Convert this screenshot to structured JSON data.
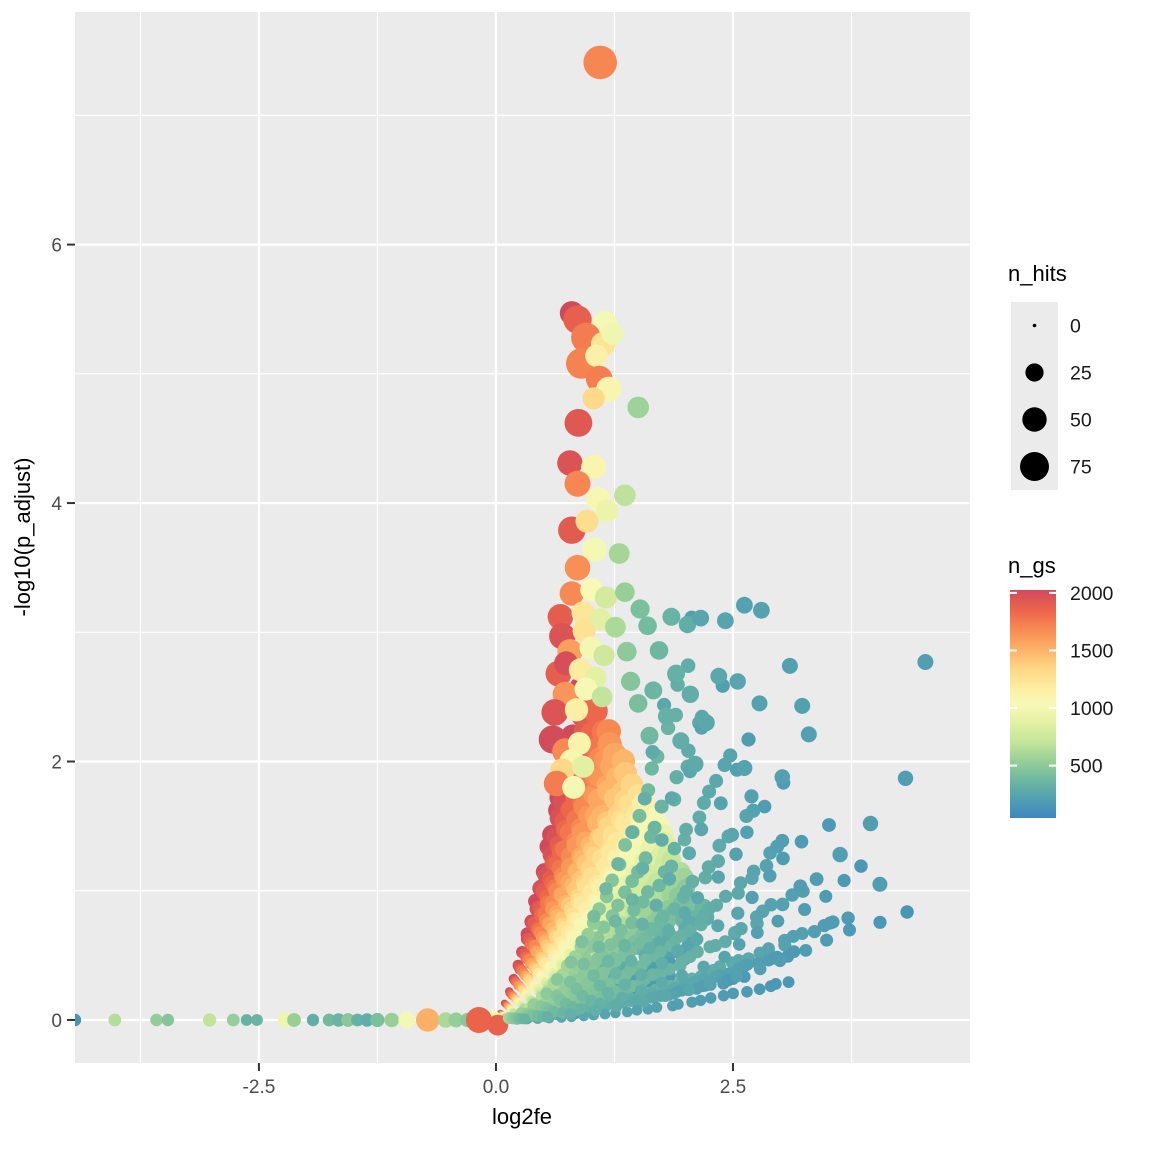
{
  "chart_data": {
    "type": "scatter",
    "title": "",
    "xlabel": "log2fe",
    "ylabel": "-log10(p_adjust)",
    "x_axis": {
      "min": -4.44,
      "max": 5.0,
      "major_ticks": [
        -2.5,
        0.0,
        2.5
      ],
      "tick_labels": [
        "-2.5",
        "0.0",
        "2.5"
      ],
      "minor_ticks": [
        -3.75,
        -1.25,
        1.25,
        3.75
      ]
    },
    "y_axis": {
      "min": -0.333,
      "max": 7.8,
      "major_ticks": [
        0,
        2,
        4,
        6
      ],
      "tick_labels": [
        "0",
        "2",
        "4",
        "6"
      ],
      "minor_ticks": [
        1,
        3,
        5,
        7
      ]
    },
    "grid": true,
    "panel_bg": "#ebebeb",
    "grid_color": "#ffffff",
    "tick_mark_color": "#333333",
    "size_legend": {
      "title": "n_hits",
      "values": [
        0,
        25,
        50,
        75
      ],
      "r_min": 1.8,
      "r_at_ref": 14.5,
      "ref": 75,
      "key_fill": "#000000",
      "key_bg": "#ebebeb"
    },
    "color_legend": {
      "title": "n_gs",
      "ticks": [
        2000,
        1500,
        1000,
        500
      ],
      "domain": [
        45,
        2025
      ],
      "palette": [
        [
          0,
          "#3e88be"
        ],
        [
          0.09,
          "#53a1b0"
        ],
        [
          0.17,
          "#6fb9a0"
        ],
        [
          0.25,
          "#97cf97"
        ],
        [
          0.33,
          "#c3e59b"
        ],
        [
          0.42,
          "#e4f1a3"
        ],
        [
          0.5,
          "#f7f9b6"
        ],
        [
          0.58,
          "#fdeb9e"
        ],
        [
          0.66,
          "#fdd584"
        ],
        [
          0.74,
          "#fcb166"
        ],
        [
          0.83,
          "#f78a53"
        ],
        [
          0.91,
          "#ec654a"
        ],
        [
          1,
          "#d14a5c"
        ]
      ]
    },
    "points_format": [
      "log2fe",
      "neg_log10_p_adjust",
      "n_hits",
      "n_gs"
    ],
    "highlight_points": [
      [
        1.1,
        7.41,
        105,
        1700
      ],
      [
        0.8,
        5.47,
        48,
        2050
      ],
      [
        0.86,
        5.42,
        72,
        1880
      ],
      [
        1.15,
        5.39,
        52,
        1020
      ],
      [
        0.95,
        5.28,
        80,
        1750
      ],
      [
        1.13,
        5.23,
        50,
        1250
      ],
      [
        1.23,
        5.31,
        40,
        980
      ],
      [
        0.9,
        5.08,
        85,
        1720
      ],
      [
        1.06,
        5.14,
        42,
        1120
      ],
      [
        1.09,
        4.96,
        62,
        1740
      ],
      [
        1.19,
        4.88,
        55,
        1080
      ],
      [
        1.03,
        4.81,
        40,
        1320
      ],
      [
        1.5,
        4.74,
        38,
        560
      ],
      [
        0.87,
        4.62,
        68,
        1930
      ],
      [
        0.78,
        4.31,
        55,
        1960
      ],
      [
        1.03,
        4.28,
        52,
        1090
      ],
      [
        0.86,
        4.15,
        58,
        1700
      ],
      [
        1.08,
        4.03,
        50,
        1060
      ],
      [
        1.36,
        4.06,
        38,
        680
      ],
      [
        1.17,
        3.94,
        42,
        940
      ],
      [
        0.8,
        3.79,
        66,
        1910
      ],
      [
        0.96,
        3.86,
        44,
        1290
      ],
      [
        1.04,
        3.64,
        50,
        1010
      ],
      [
        1.3,
        3.61,
        34,
        590
      ],
      [
        0.86,
        3.5,
        56,
        1660
      ],
      [
        0.8,
        3.3,
        50,
        1690
      ],
      [
        1.01,
        3.33,
        44,
        1040
      ],
      [
        1.16,
        3.27,
        40,
        790
      ],
      [
        1.36,
        3.31,
        30,
        540
      ],
      [
        0.68,
        3.12,
        56,
        1900
      ],
      [
        0.92,
        3.15,
        46,
        1230
      ],
      [
        1.1,
        3.1,
        40,
        860
      ],
      [
        0.7,
        2.97,
        60,
        1960
      ],
      [
        0.93,
        3.01,
        44,
        1260
      ],
      [
        1.26,
        3.04,
        34,
        610
      ],
      [
        0.78,
        2.85,
        54,
        1590
      ],
      [
        1.0,
        2.88,
        42,
        990
      ],
      [
        1.14,
        2.82,
        36,
        760
      ],
      [
        0.66,
        2.68,
        58,
        1890
      ],
      [
        0.74,
        2.76,
        48,
        2000
      ],
      [
        0.89,
        2.71,
        44,
        1180
      ],
      [
        1.05,
        2.65,
        38,
        880
      ],
      [
        0.73,
        2.52,
        54,
        1640
      ],
      [
        0.95,
        2.56,
        44,
        1030
      ],
      [
        1.12,
        2.5,
        34,
        700
      ],
      [
        0.62,
        2.38,
        62,
        1950
      ],
      [
        0.85,
        2.4,
        46,
        1150
      ],
      [
        0.6,
        2.17,
        70,
        2010
      ],
      [
        0.73,
        2.08,
        58,
        1690
      ],
      [
        0.88,
        2.14,
        44,
        1100
      ],
      [
        0.8,
        2.0,
        52,
        1080
      ],
      [
        0.7,
        1.93,
        50,
        1330
      ],
      [
        0.92,
        1.96,
        40,
        860
      ],
      [
        0.64,
        1.83,
        56,
        1750
      ],
      [
        0.82,
        1.8,
        44,
        1010
      ]
    ],
    "baseline_points": [
      [
        -4.44,
        0,
        9,
        140
      ],
      [
        -4.02,
        0,
        10,
        640
      ],
      [
        -3.58,
        0,
        9,
        520
      ],
      [
        -3.46,
        0,
        9,
        470
      ],
      [
        -3.02,
        0,
        11,
        690
      ],
      [
        -2.77,
        0,
        10,
        530
      ],
      [
        -2.63,
        0,
        8,
        330
      ],
      [
        -2.52,
        0,
        8,
        350
      ],
      [
        -2.22,
        0,
        16,
        960
      ],
      [
        -2.13,
        0,
        12,
        540
      ],
      [
        -1.93,
        0,
        9,
        310
      ],
      [
        -1.76,
        0,
        10,
        390
      ],
      [
        -1.66,
        0,
        11,
        350
      ],
      [
        -1.56,
        0,
        12,
        490
      ],
      [
        -1.46,
        0,
        10,
        330
      ],
      [
        -1.36,
        0,
        11,
        300
      ],
      [
        -1.25,
        0,
        13,
        430
      ],
      [
        -1.1,
        0,
        14,
        540
      ],
      [
        -0.94,
        0,
        20,
        1010
      ],
      [
        -0.72,
        0,
        46,
        1520
      ],
      [
        -0.53,
        0,
        17,
        610
      ],
      [
        -0.42,
        0,
        15,
        530
      ],
      [
        -0.3,
        0,
        13,
        480
      ],
      [
        -0.04,
        0,
        28,
        1060
      ],
      [
        -0.18,
        0,
        58,
        1860
      ],
      [
        0.02,
        -0.04,
        34,
        1870
      ]
    ],
    "scatter_points": [
      [
        1.85,
        3.12,
        24,
        340
      ],
      [
        2.02,
        3.06,
        22,
        300
      ],
      [
        2.16,
        3.11,
        20,
        250
      ],
      [
        2.42,
        3.09,
        20,
        240
      ],
      [
        2.62,
        3.21,
        20,
        230
      ],
      [
        2.8,
        3.17,
        20,
        230
      ],
      [
        3.1,
        2.74,
        18,
        220
      ],
      [
        4.53,
        2.77,
        18,
        210
      ],
      [
        3.23,
        2.43,
        18,
        220
      ],
      [
        3.3,
        2.21,
        18,
        215
      ],
      [
        2.78,
        2.45,
        18,
        230
      ],
      [
        2.55,
        2.62,
        19,
        250
      ],
      [
        2.35,
        2.66,
        20,
        260
      ],
      [
        2.62,
        1.95,
        18,
        235
      ],
      [
        3.02,
        1.88,
        17,
        215
      ],
      [
        4.32,
        1.87,
        16,
        200
      ],
      [
        2.22,
        2.3,
        20,
        270
      ],
      [
        2.05,
        2.52,
        22,
        300
      ],
      [
        1.9,
        2.68,
        24,
        330
      ],
      [
        1.72,
        2.86,
        26,
        370
      ],
      [
        1.6,
        3.05,
        26,
        400
      ],
      [
        1.52,
        3.18,
        28,
        430
      ],
      [
        1.66,
        2.55,
        24,
        360
      ],
      [
        1.8,
        2.35,
        22,
        330
      ],
      [
        1.95,
        2.16,
        21,
        300
      ],
      [
        2.1,
        1.98,
        20,
        280
      ],
      [
        3.95,
        1.52,
        16,
        205
      ],
      [
        4.05,
        1.05,
        15,
        200
      ],
      [
        3.63,
        1.28,
        16,
        210
      ],
      [
        1.62,
        2.2,
        24,
        380
      ],
      [
        1.5,
        2.45,
        26,
        420
      ],
      [
        1.42,
        2.62,
        28,
        470
      ],
      [
        1.38,
        2.85,
        30,
        500
      ]
    ],
    "fan": {
      "n_per_ray": 20,
      "bend": 1.3,
      "s_start": 0.05,
      "ray_format": [
        "n_gs",
        "x_end",
        "y_end",
        "n_hits_tip"
      ],
      "rays": [
        [
          2050,
          0.92,
          2.55,
          58
        ],
        [
          1980,
          0.97,
          2.48,
          57
        ],
        [
          1909,
          1.02,
          2.41,
          55
        ],
        [
          1839,
          1.07,
          2.34,
          54
        ],
        [
          1768,
          1.12,
          2.27,
          52
        ],
        [
          1698,
          1.18,
          2.2,
          51
        ],
        [
          1628,
          1.23,
          2.13,
          49
        ],
        [
          1557,
          1.28,
          2.06,
          48
        ],
        [
          1487,
          1.33,
          1.99,
          46
        ],
        [
          1416,
          1.38,
          1.92,
          45
        ],
        [
          1346,
          1.43,
          1.85,
          44
        ],
        [
          1276,
          1.48,
          1.78,
          42
        ],
        [
          1205,
          1.53,
          1.71,
          41
        ],
        [
          1135,
          1.59,
          1.64,
          39
        ],
        [
          1064,
          1.64,
          1.57,
          38
        ],
        [
          994,
          1.69,
          1.5,
          36
        ],
        [
          924,
          1.74,
          1.43,
          35
        ],
        [
          853,
          1.79,
          1.36,
          34
        ],
        [
          783,
          1.84,
          1.29,
          32
        ],
        [
          712,
          1.89,
          1.22,
          31
        ],
        [
          642,
          1.94,
          1.15,
          29
        ],
        [
          572,
          2.0,
          1.08,
          28
        ],
        [
          501,
          2.05,
          1.01,
          26
        ],
        [
          431,
          2.1,
          0.94,
          25
        ],
        [
          360,
          2.15,
          0.87,
          24
        ],
        [
          290,
          2.2,
          0.8,
          22
        ],
        [
          240,
          2.1,
          0.62,
          18
        ],
        [
          205,
          1.95,
          0.47,
          15
        ],
        [
          180,
          1.78,
          0.34,
          13
        ],
        [
          160,
          1.58,
          0.24,
          11
        ],
        [
          140,
          1.35,
          0.16,
          9
        ],
        [
          120,
          1.1,
          0.09,
          7
        ],
        [
          105,
          0.85,
          0.05,
          6
        ]
      ]
    },
    "arcs": {
      "format": [
        "ngs_start",
        "ngs_end",
        "n_hits",
        "n_points",
        "x_end",
        "y_end",
        "bend"
      ],
      "list": [
        [
          700,
          260,
          14,
          30,
          2.2,
          2.4,
          1.85
        ],
        [
          750,
          300,
          14,
          28,
          2.0,
          2.75,
          1.95
        ],
        [
          650,
          240,
          13,
          34,
          2.45,
          2.05,
          1.8
        ],
        [
          620,
          225,
          13,
          36,
          2.75,
          1.7,
          1.75
        ],
        [
          580,
          210,
          12,
          38,
          3.05,
          1.38,
          1.7
        ],
        [
          540,
          195,
          12,
          40,
          3.35,
          1.08,
          1.65
        ],
        [
          500,
          180,
          11,
          42,
          3.65,
          0.8,
          1.6
        ],
        [
          460,
          170,
          10,
          44,
          3.1,
          0.52,
          1.5
        ],
        [
          430,
          170,
          9,
          40,
          2.6,
          0.33,
          1.4
        ],
        [
          300,
          150,
          8,
          26,
          3.1,
          0.3,
          1.9
        ],
        [
          600,
          220,
          14,
          16,
          2.05,
          3.1,
          2.0
        ],
        [
          560,
          210,
          13,
          15,
          2.35,
          2.62,
          2.0
        ],
        [
          520,
          195,
          13,
          16,
          2.68,
          2.22,
          1.95
        ],
        [
          480,
          180,
          12,
          17,
          3.05,
          1.86,
          1.9
        ],
        [
          440,
          165,
          12,
          18,
          3.45,
          1.52,
          1.85
        ],
        [
          400,
          150,
          11,
          18,
          3.85,
          1.18,
          1.8
        ],
        [
          360,
          140,
          11,
          17,
          4.28,
          0.85,
          1.75
        ]
      ]
    }
  }
}
